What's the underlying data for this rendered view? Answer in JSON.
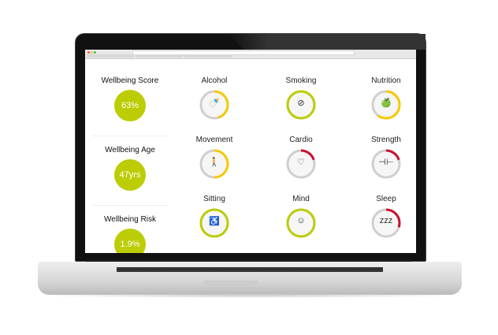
{
  "colors": {
    "green": "#bccd06",
    "yellow": "#f7c900",
    "red": "#c8102e",
    "track": "#cfcfcf"
  },
  "summary": [
    {
      "label": "Wellbeing Score",
      "value": "63%"
    },
    {
      "label": "Wellbeing Age",
      "value": "47yrs"
    },
    {
      "label": "Wellbeing Risk",
      "value": "1.9%"
    }
  ],
  "metrics": [
    {
      "label": "Alcohol",
      "icon": "bottle-icon",
      "glyph": "🍼",
      "level": 0.45,
      "status": "yellow"
    },
    {
      "label": "Smoking",
      "icon": "no-smoking-icon",
      "glyph": "⊘",
      "level": 1.0,
      "status": "green"
    },
    {
      "label": "Nutrition",
      "icon": "apple-icon",
      "glyph": "🍏",
      "level": 0.6,
      "status": "yellow"
    },
    {
      "label": "Movement",
      "icon": "walking-icon",
      "glyph": "🚶",
      "level": 0.5,
      "status": "yellow"
    },
    {
      "label": "Cardio",
      "icon": "heart-pulse-icon",
      "glyph": "♡",
      "level": 0.2,
      "status": "red"
    },
    {
      "label": "Strength",
      "icon": "dumbbell-icon",
      "glyph": "⊣⊢",
      "level": 0.2,
      "status": "red"
    },
    {
      "label": "Sitting",
      "icon": "sitting-icon",
      "glyph": "♿",
      "level": 1.0,
      "status": "green"
    },
    {
      "label": "Mind",
      "icon": "head-icon",
      "glyph": "☺",
      "level": 1.0,
      "status": "green"
    },
    {
      "label": "Sleep",
      "icon": "zzz-icon",
      "glyph": "zzz",
      "level": 0.3,
      "status": "red"
    }
  ]
}
